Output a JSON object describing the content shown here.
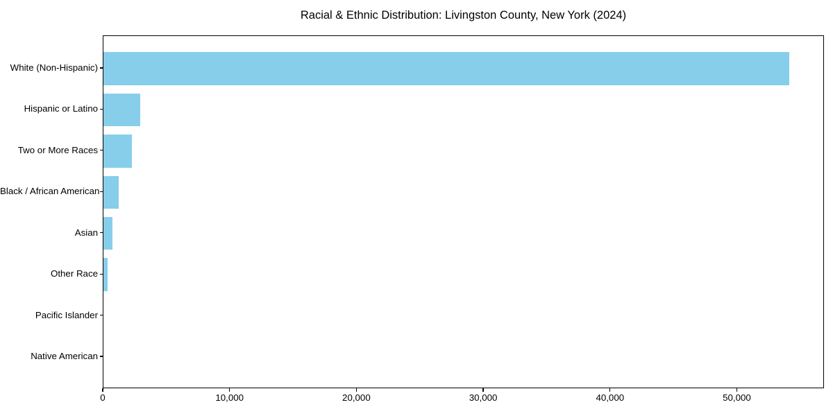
{
  "chart_data": {
    "type": "bar",
    "orientation": "horizontal",
    "title": "Racial & Ethnic Distribution: Livingston County, New York (2024)",
    "categories": [
      "White (Non-Hispanic)",
      "Hispanic or Latino",
      "Two or More Races",
      "Black / African American",
      "Asian",
      "Other Race",
      "Pacific Islander",
      "Native American"
    ],
    "values": [
      54100,
      2880,
      2220,
      1180,
      710,
      340,
      10,
      25
    ],
    "xlabel": "",
    "ylabel": "",
    "xlim": [
      0,
      56870
    ],
    "xticks": {
      "values": [
        0,
        10000,
        20000,
        30000,
        40000,
        50000
      ],
      "labels": [
        "0",
        "10,000",
        "20,000",
        "30,000",
        "40,000",
        "50,000"
      ]
    },
    "grid": false,
    "legend": null,
    "colors": {
      "bar": "#87CEEB",
      "axis": "#000000",
      "text": "#000000",
      "background": "#FFFFFF"
    }
  }
}
